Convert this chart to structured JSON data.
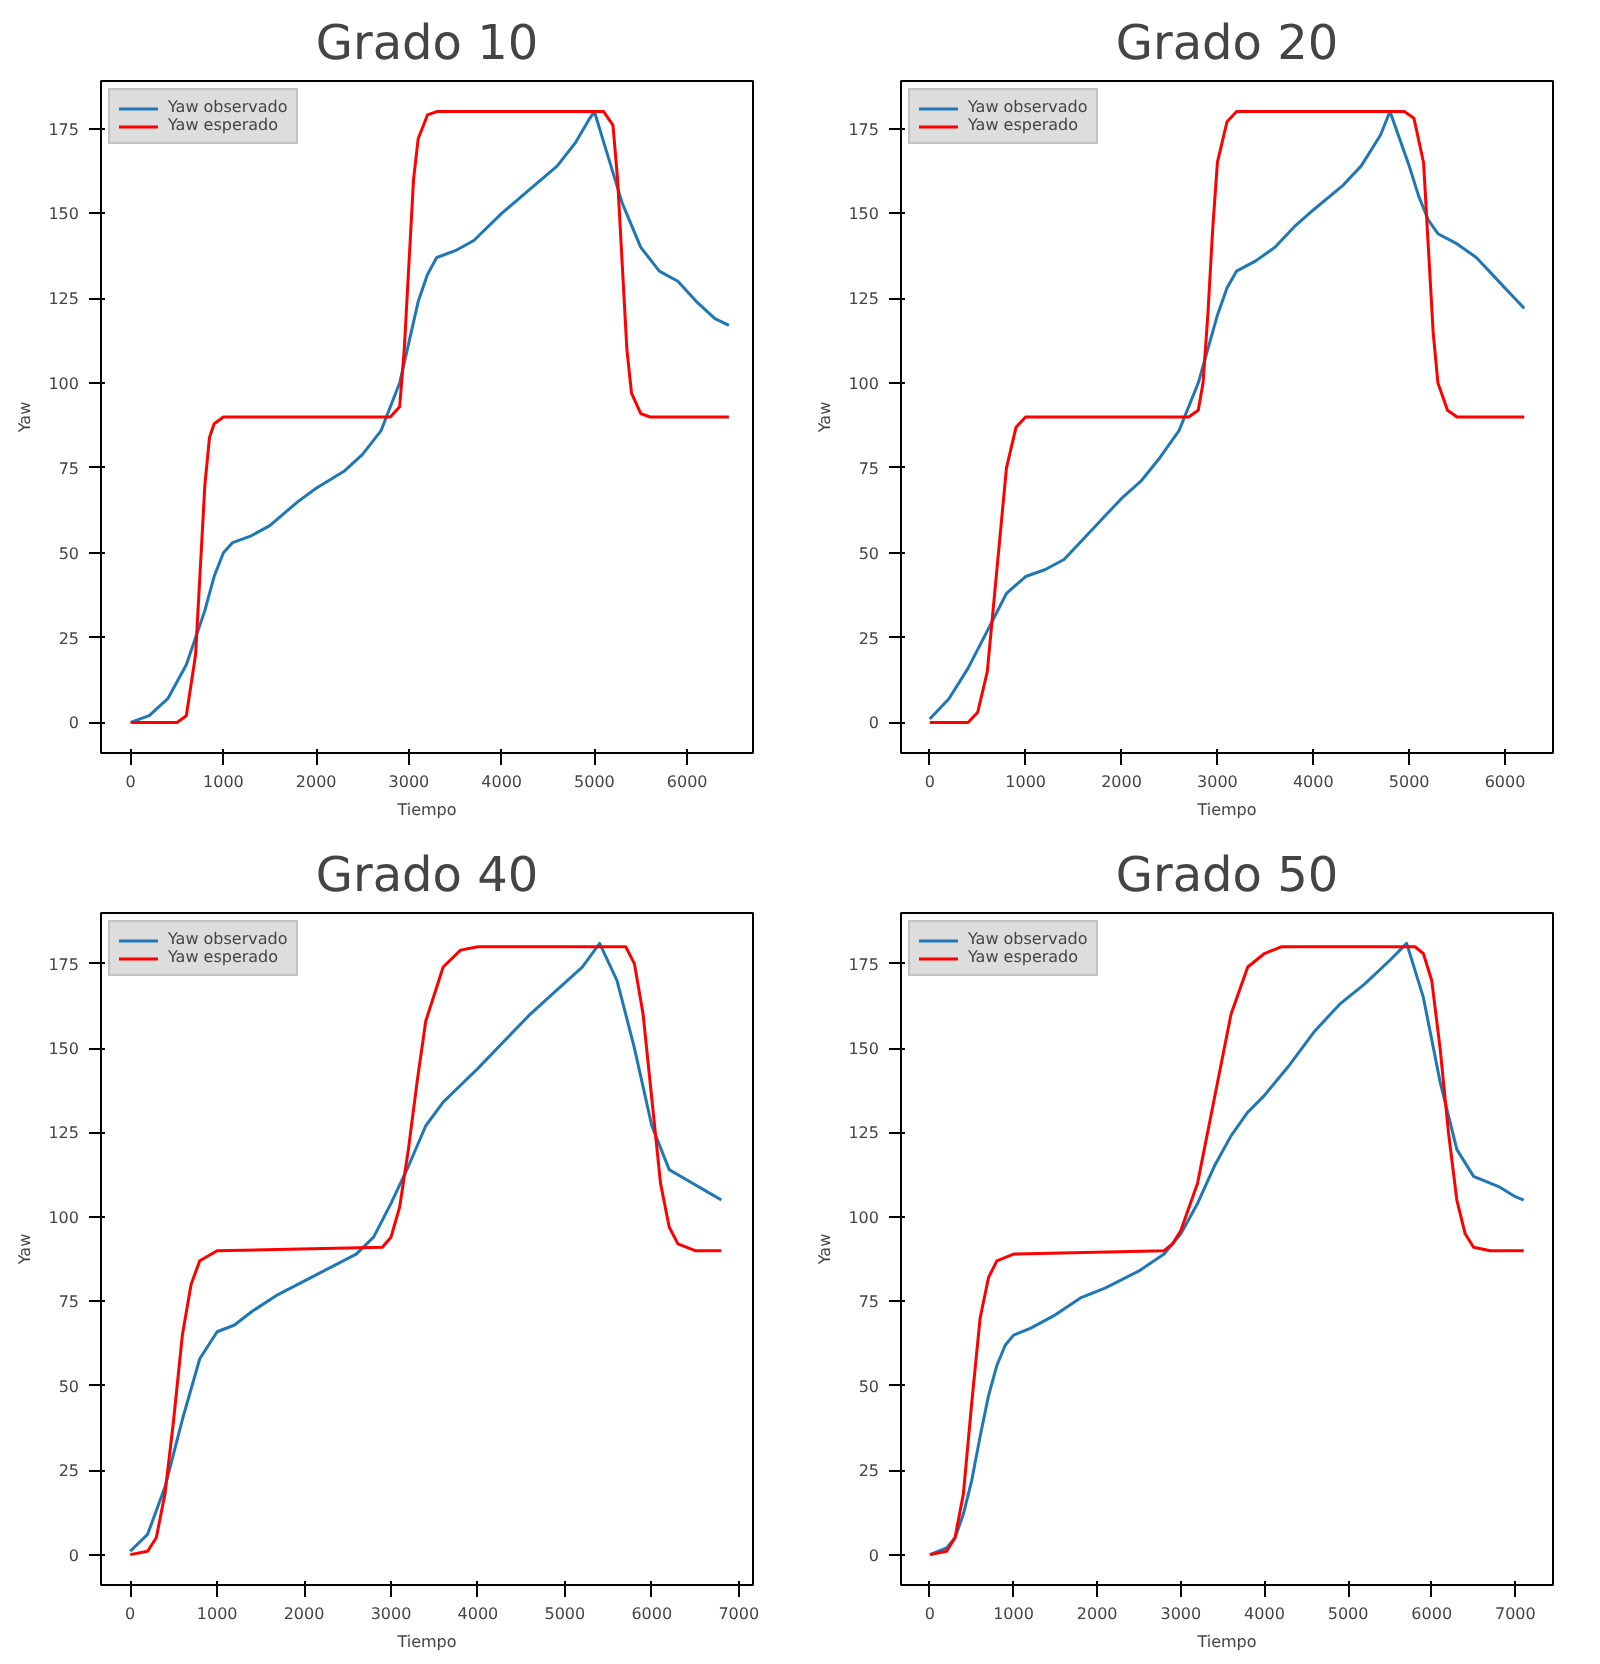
{
  "chart_data": [
    {
      "type": "line",
      "title": "Grado 10",
      "xlabel": "Tiempo",
      "ylabel": "Yaw",
      "xlim": [
        -320,
        6710
      ],
      "ylim": [
        -9,
        189
      ],
      "xticks": [
        0,
        1000,
        2000,
        3000,
        4000,
        5000,
        6000
      ],
      "yticks": [
        0,
        25,
        50,
        75,
        100,
        125,
        150,
        175
      ],
      "grid": false,
      "legend": "top left",
      "series": [
        {
          "name": "Yaw observado",
          "color": "#1f77b4",
          "x": [
            0,
            200,
            400,
            600,
            800,
            900,
            1000,
            1100,
            1300,
            1500,
            1800,
            2000,
            2300,
            2500,
            2700,
            2900,
            3000,
            3100,
            3200,
            3300,
            3500,
            3700,
            4000,
            4300,
            4600,
            4800,
            4950,
            5000,
            5100,
            5300,
            5500,
            5700,
            5900,
            6100,
            6300,
            6450
          ],
          "values": [
            0,
            2,
            7,
            17,
            33,
            43,
            50,
            53,
            55,
            58,
            65,
            69,
            74,
            79,
            86,
            100,
            112,
            124,
            132,
            137,
            139,
            142,
            150,
            157,
            164,
            171,
            178,
            180,
            171,
            153,
            140,
            133,
            130,
            124,
            119,
            117
          ]
        },
        {
          "name": "Yaw esperado",
          "color": "#ff0000",
          "x": [
            0,
            500,
            600,
            700,
            750,
            800,
            850,
            900,
            1000,
            2800,
            2900,
            2950,
            3000,
            3050,
            3100,
            3200,
            3300,
            5100,
            5200,
            5250,
            5300,
            5350,
            5400,
            5500,
            5600,
            6450
          ],
          "values": [
            0,
            0,
            2,
            20,
            45,
            70,
            84,
            88,
            90,
            90,
            93,
            110,
            135,
            160,
            172,
            179,
            180,
            180,
            176,
            160,
            135,
            110,
            97,
            91,
            90,
            90
          ]
        }
      ]
    },
    {
      "type": "line",
      "title": "Grado 20",
      "xlabel": "Tiempo",
      "ylabel": "Yaw",
      "xlim": [
        -300,
        6500
      ],
      "ylim": [
        -9,
        189
      ],
      "xticks": [
        0,
        1000,
        2000,
        3000,
        4000,
        5000,
        6000
      ],
      "yticks": [
        0,
        25,
        50,
        75,
        100,
        125,
        150,
        175
      ],
      "grid": false,
      "legend": "top left",
      "series": [
        {
          "name": "Yaw observado",
          "color": "#1f77b4",
          "x": [
            0,
            200,
            400,
            600,
            800,
            1000,
            1200,
            1400,
            1600,
            1800,
            2000,
            2200,
            2400,
            2600,
            2800,
            2900,
            3000,
            3100,
            3200,
            3400,
            3600,
            3800,
            4000,
            4300,
            4500,
            4700,
            4800,
            4900,
            5000,
            5100,
            5200,
            5300,
            5500,
            5700,
            5900,
            6100,
            6200
          ],
          "values": [
            1,
            7,
            16,
            27,
            38,
            43,
            45,
            48,
            54,
            60,
            66,
            71,
            78,
            86,
            100,
            110,
            120,
            128,
            133,
            136,
            140,
            146,
            151,
            158,
            164,
            173,
            180,
            172,
            164,
            155,
            148,
            144,
            141,
            137,
            131,
            125,
            122
          ]
        },
        {
          "name": "Yaw esperado",
          "color": "#ff0000",
          "x": [
            0,
            400,
            500,
            600,
            700,
            800,
            900,
            1000,
            2700,
            2800,
            2850,
            2900,
            2950,
            3000,
            3100,
            3200,
            4950,
            5050,
            5150,
            5200,
            5250,
            5300,
            5400,
            5500,
            6200
          ],
          "values": [
            0,
            0,
            3,
            15,
            45,
            75,
            87,
            90,
            90,
            92,
            100,
            120,
            145,
            165,
            177,
            180,
            180,
            178,
            165,
            140,
            115,
            100,
            92,
            90,
            90
          ]
        }
      ]
    },
    {
      "type": "line",
      "title": "Grado 40",
      "xlabel": "Tiempo",
      "ylabel": "Yaw",
      "xlim": [
        -336,
        7164
      ],
      "ylim": [
        -9,
        190
      ],
      "xticks": [
        0,
        1000,
        2000,
        3000,
        4000,
        5000,
        6000,
        7000
      ],
      "yticks": [
        0,
        25,
        50,
        75,
        100,
        125,
        150,
        175
      ],
      "grid": false,
      "legend": "top left",
      "series": [
        {
          "name": "Yaw observado",
          "color": "#1f77b4",
          "x": [
            0,
            200,
            400,
            600,
            800,
            1000,
            1200,
            1400,
            1700,
            2000,
            2300,
            2600,
            2800,
            3000,
            3200,
            3400,
            3600,
            3800,
            4000,
            4300,
            4600,
            4900,
            5200,
            5400,
            5600,
            5800,
            6000,
            6200,
            6400,
            6600,
            6800
          ],
          "values": [
            1,
            6,
            20,
            40,
            58,
            66,
            68,
            72,
            77,
            81,
            85,
            89,
            94,
            104,
            115,
            127,
            134,
            139,
            144,
            152,
            160,
            167,
            174,
            181,
            170,
            150,
            127,
            114,
            111,
            108,
            105
          ]
        },
        {
          "name": "Yaw esperado",
          "color": "#ff0000",
          "x": [
            0,
            200,
            300,
            400,
            500,
            600,
            700,
            800,
            1000,
            2900,
            3000,
            3100,
            3200,
            3300,
            3400,
            3600,
            3800,
            4000,
            5700,
            5800,
            5900,
            6000,
            6100,
            6200,
            6300,
            6500,
            6800
          ],
          "values": [
            0,
            1,
            5,
            18,
            40,
            65,
            80,
            87,
            90,
            91,
            94,
            103,
            120,
            140,
            158,
            174,
            179,
            180,
            180,
            175,
            160,
            135,
            110,
            97,
            92,
            90,
            90
          ]
        }
      ]
    },
    {
      "type": "line",
      "title": "Grado 50",
      "xlabel": "Tiempo",
      "ylabel": "Yaw",
      "xlim": [
        -346,
        7450
      ],
      "ylim": [
        -9,
        190
      ],
      "xticks": [
        0,
        1000,
        2000,
        3000,
        4000,
        5000,
        6000,
        7000
      ],
      "yticks": [
        0,
        25,
        50,
        75,
        100,
        125,
        150,
        175
      ],
      "grid": false,
      "legend": "top left",
      "series": [
        {
          "name": "Yaw observado",
          "color": "#1f77b4",
          "x": [
            0,
            200,
            300,
            400,
            500,
            600,
            700,
            800,
            900,
            1000,
            1200,
            1500,
            1800,
            2100,
            2500,
            2800,
            3000,
            3200,
            3400,
            3600,
            3800,
            4000,
            4300,
            4600,
            4900,
            5200,
            5500,
            5700,
            5900,
            6100,
            6300,
            6500,
            6800,
            7000,
            7100
          ],
          "values": [
            0,
            2,
            5,
            12,
            22,
            35,
            47,
            56,
            62,
            65,
            67,
            71,
            76,
            79,
            84,
            89,
            95,
            104,
            115,
            124,
            131,
            136,
            145,
            155,
            163,
            169,
            176,
            181,
            165,
            140,
            120,
            112,
            109,
            106,
            105
          ]
        },
        {
          "name": "Yaw esperado",
          "color": "#ff0000",
          "x": [
            0,
            200,
            300,
            400,
            500,
            600,
            700,
            800,
            1000,
            2800,
            2900,
            3000,
            3200,
            3400,
            3600,
            3800,
            4000,
            4200,
            5800,
            5900,
            6000,
            6100,
            6200,
            6300,
            6400,
            6500,
            6700,
            7100
          ],
          "values": [
            0,
            1,
            5,
            18,
            45,
            70,
            82,
            87,
            89,
            90,
            92,
            96,
            110,
            135,
            160,
            174,
            178,
            180,
            180,
            178,
            170,
            150,
            125,
            105,
            95,
            91,
            90,
            90
          ]
        }
      ]
    }
  ]
}
